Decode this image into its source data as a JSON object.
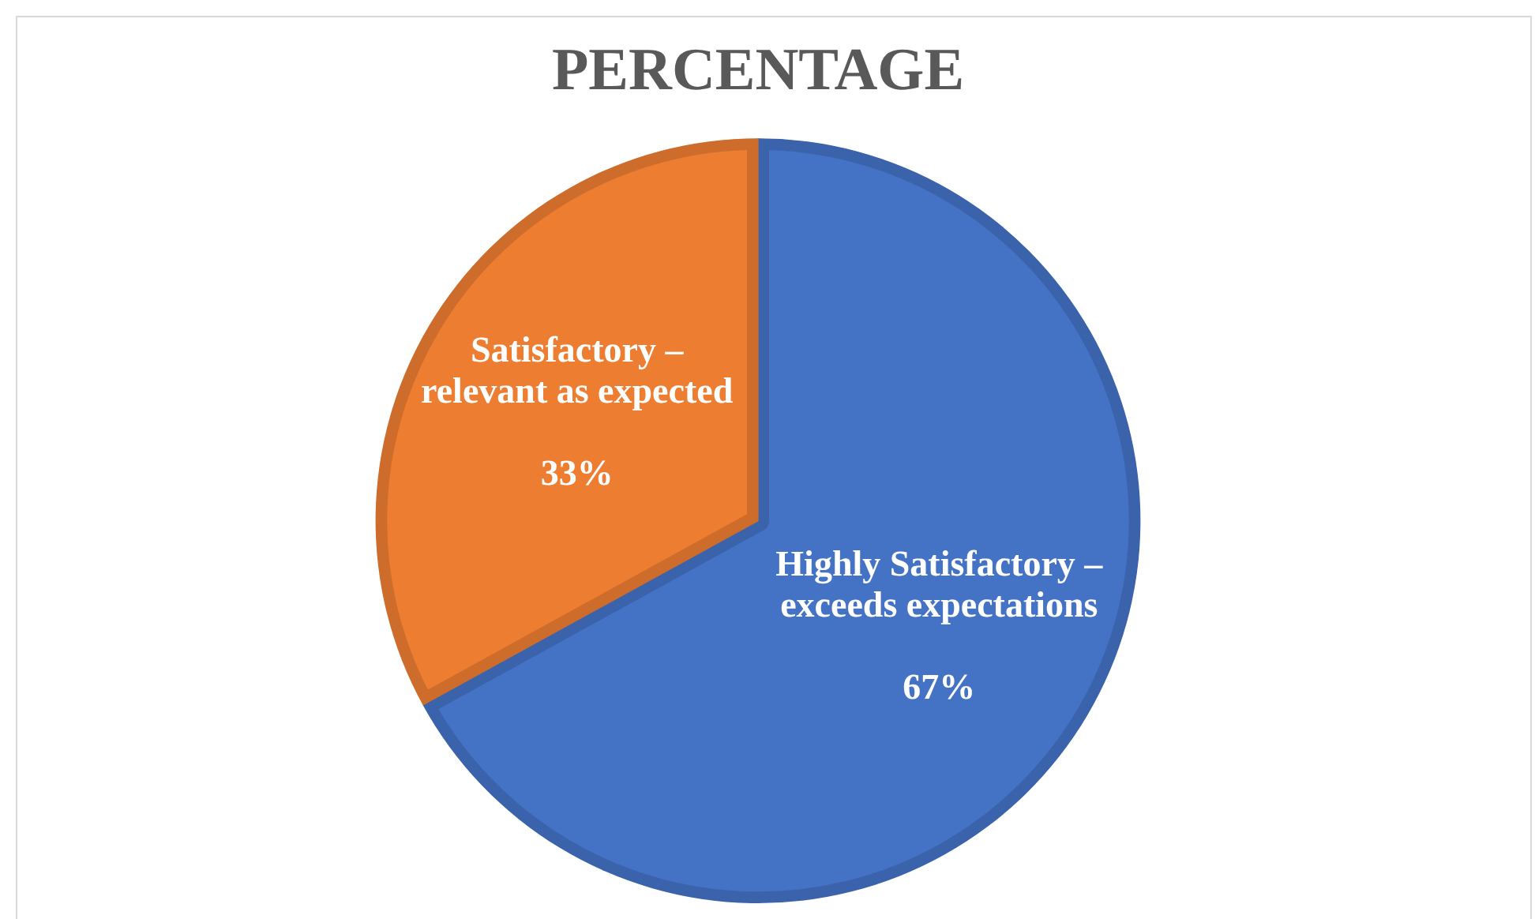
{
  "chart_data": {
    "type": "pie",
    "title": "PERCENTAGE",
    "categories": [
      "Highly Satisfactory – exceeds expectations",
      "Satisfactory – relevant as expected"
    ],
    "values": [
      67,
      33
    ],
    "colors": [
      "#4472c4",
      "#ed7d31"
    ],
    "value_labels": [
      "67%",
      "33%"
    ]
  }
}
